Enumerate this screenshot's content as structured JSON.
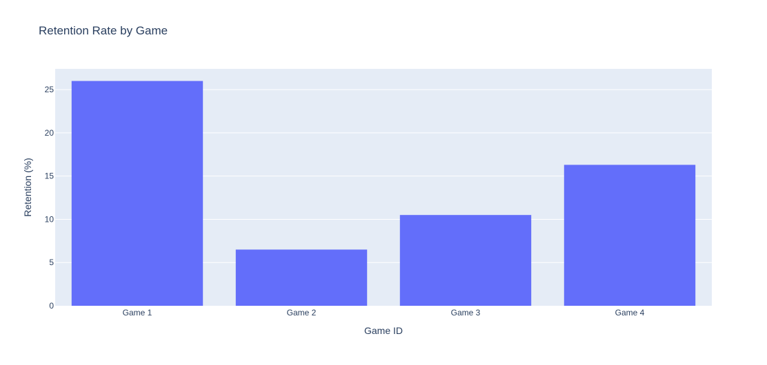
{
  "chart_data": {
    "type": "bar",
    "title": "Retention Rate by Game",
    "xlabel": "Game ID",
    "ylabel": "Retention (%)",
    "categories": [
      "Game 1",
      "Game 2",
      "Game 3",
      "Game 4"
    ],
    "values": [
      26.0,
      6.5,
      10.5,
      16.3
    ],
    "ylim": [
      0,
      27.4
    ],
    "yticks": [
      0,
      5,
      10,
      15,
      20,
      25
    ],
    "grid": true,
    "colors": {
      "bar": "#636efa",
      "plot_background": "#e5ecf6",
      "grid": "#ffffff",
      "text": "#2a3f5f"
    }
  }
}
